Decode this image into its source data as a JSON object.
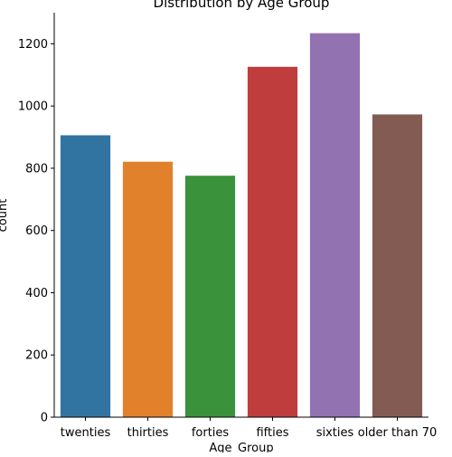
{
  "chart_data": {
    "type": "bar",
    "title": "Distribution by Age Group",
    "xlabel": "Age_Group",
    "ylabel": "count",
    "categories": [
      "twenties",
      "thirties",
      "forties",
      "fifties",
      "sixties",
      "older than 70"
    ],
    "values": [
      906,
      821,
      776,
      1126,
      1234,
      973
    ],
    "colors": [
      "#3274a1",
      "#e1812c",
      "#3a923a",
      "#c03d3e",
      "#9372b2",
      "#845b53"
    ],
    "ylim": [
      0,
      1300
    ],
    "yticks": [
      0,
      200,
      400,
      600,
      800,
      1000,
      1200
    ],
    "grid": false,
    "legend": "none"
  }
}
